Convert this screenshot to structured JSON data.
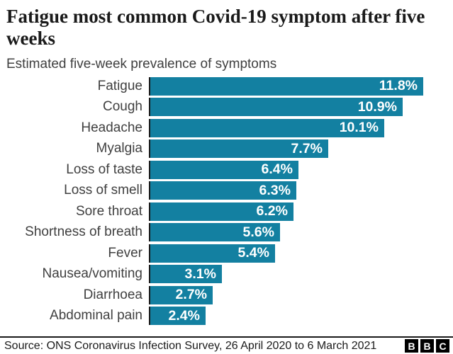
{
  "header": {
    "title": "Fatigue most common Covid-19 symptom after five weeks",
    "subtitle": "Estimated five-week prevalence of symptoms"
  },
  "chart_data": {
    "type": "bar",
    "orientation": "horizontal",
    "title": "Fatigue most common Covid-19 symptom after five weeks",
    "subtitle": "Estimated five-week prevalence of symptoms",
    "categories": [
      "Fatigue",
      "Cough",
      "Headache",
      "Myalgia",
      "Loss of taste",
      "Loss of smell",
      "Sore throat",
      "Shortness of breath",
      "Fever",
      "Nausea/vomiting",
      "Diarrhoea",
      "Abdominal pain"
    ],
    "values": [
      11.8,
      10.9,
      10.1,
      7.7,
      6.4,
      6.3,
      6.2,
      5.6,
      5.4,
      3.1,
      2.7,
      2.4
    ],
    "value_labels": [
      "11.8%",
      "10.9%",
      "10.1%",
      "7.7%",
      "6.4%",
      "6.3%",
      "6.2%",
      "5.6%",
      "5.4%",
      "3.1%",
      "2.7%",
      "2.4%"
    ],
    "xlabel": "",
    "ylabel": "",
    "xlim": [
      0,
      12.2
    ],
    "grid": false,
    "legend": false,
    "bar_color": "#1380A1",
    "axis_color": "#1a1a1a",
    "value_label_color": "#ffffff",
    "category_label_color": "#404040"
  },
  "footer": {
    "source": "Source: ONS Coronavirus Infection Survey, 26 April 2020 to 6 March 2021",
    "logo_letters": [
      "B",
      "B",
      "C"
    ]
  }
}
